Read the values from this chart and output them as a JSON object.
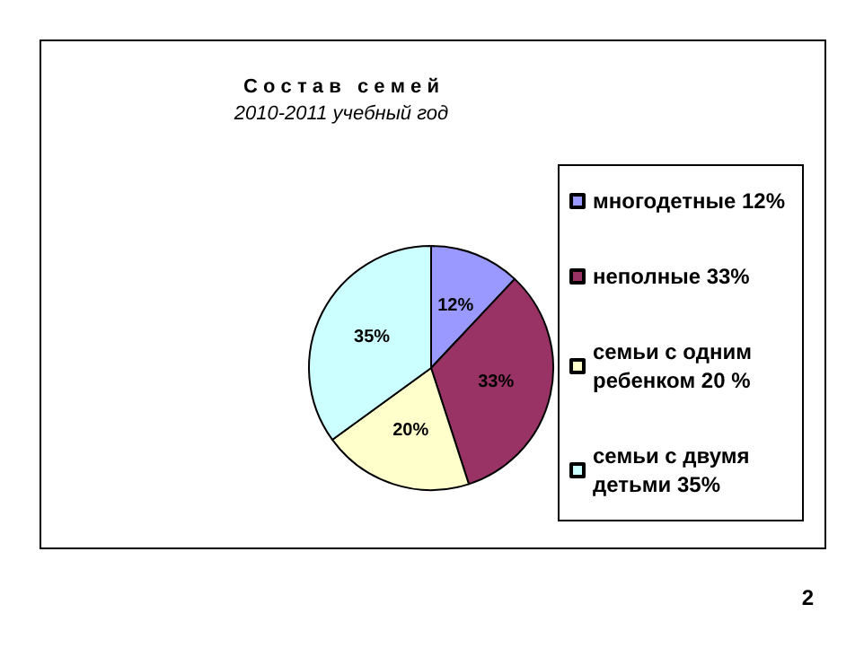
{
  "chart_data": {
    "type": "pie",
    "title": "С о с т а в   с е м е й",
    "subtitle": "2010-2011 учебный год",
    "categories": [
      "многодетные 12%",
      "неполные 33%",
      "семьи с одним ребенком 20 %",
      "семьи с двумя детьми 35%"
    ],
    "values": [
      12,
      33,
      20,
      35
    ],
    "colors": [
      "#9999ff",
      "#993366",
      "#ffffcc",
      "#ccffff"
    ],
    "value_labels": [
      "12%",
      "33%",
      "20%",
      "35%"
    ],
    "legend": "right",
    "annotations": [
      "2"
    ]
  }
}
